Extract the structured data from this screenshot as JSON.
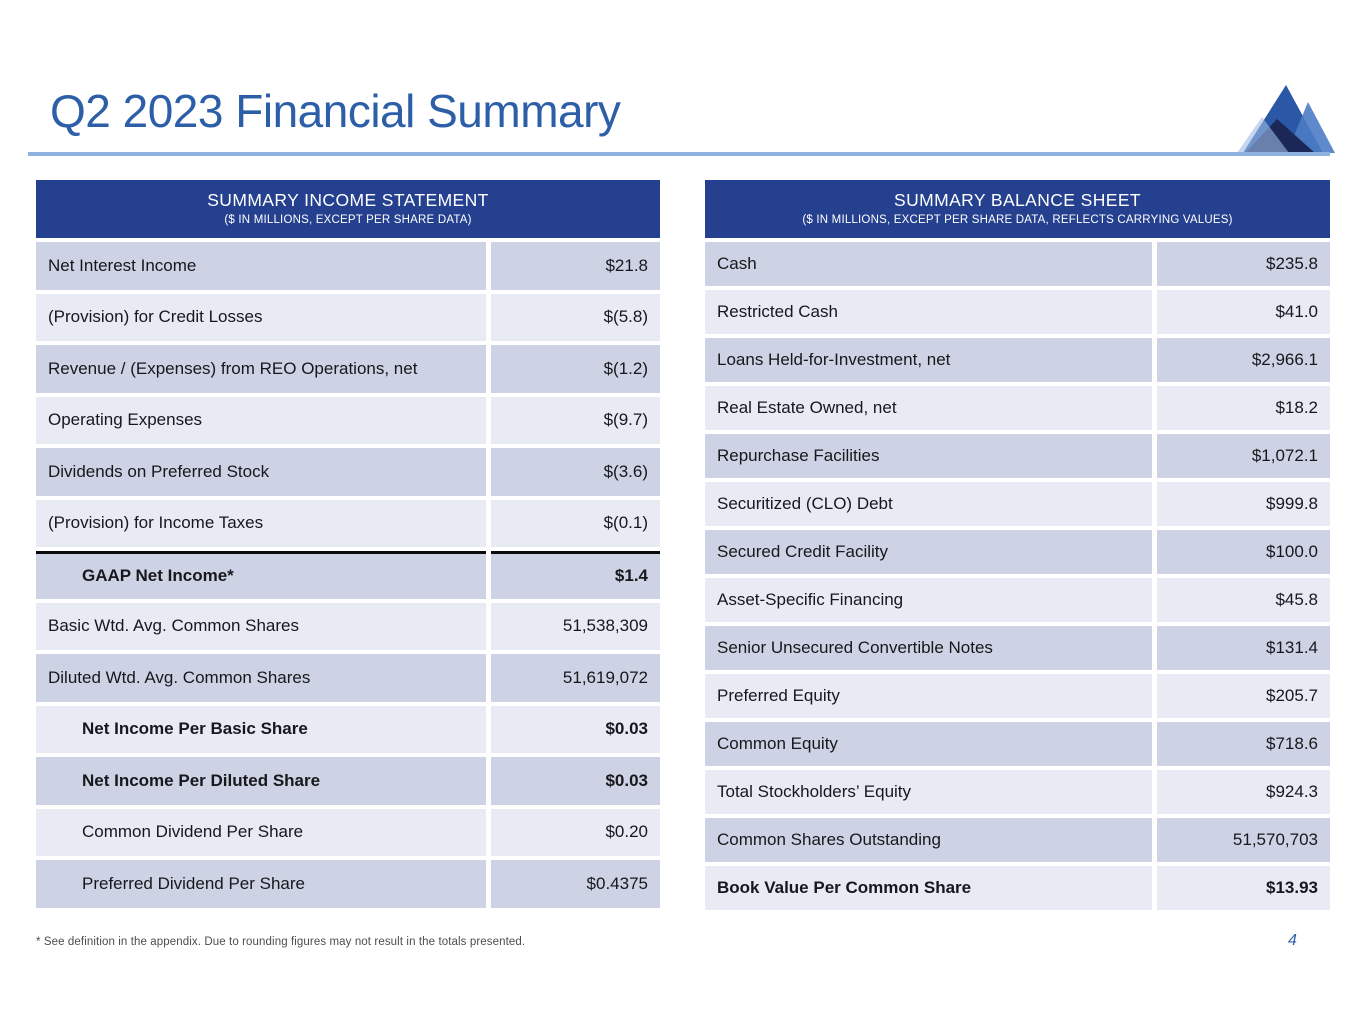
{
  "slide": {
    "title": "Q2 2023 Financial Summary",
    "footnote": "* See definition in the appendix. Due to rounding figures may not result in the totals presented.",
    "page_number": "4"
  },
  "colors": {
    "header_blue": "#24408e",
    "row_dark": "#cdd3e4",
    "row_light": "#e8ebf4",
    "title_blue": "#2d5fa8",
    "rule_blue": "#8fb1e0",
    "logo_navy": "#1b2757",
    "logo_medium_blue": "#2b57a7",
    "logo_light_blue": "#4c7cc5"
  },
  "icons": {
    "logo": "mountain-logo-icon"
  },
  "income_statement": {
    "title": "SUMMARY INCOME STATEMENT",
    "subtitle": "($ IN MILLIONS, EXCEPT PER SHARE DATA)",
    "rows": [
      {
        "label": "Net Interest Income",
        "value": "$21.8"
      },
      {
        "label": "(Provision) for Credit Losses",
        "value": "$(5.8)"
      },
      {
        "label": "Revenue / (Expenses) from REO Operations, net",
        "value": "$(1.2)"
      },
      {
        "label": "Operating Expenses",
        "value": "$(9.7)"
      },
      {
        "label": "Dividends on Preferred Stock",
        "value": "$(3.6)"
      },
      {
        "label": "(Provision) for Income Taxes",
        "value": "$(0.1)"
      },
      {
        "label": "GAAP Net Income*",
        "value": "$1.4",
        "bold": true,
        "indent": true,
        "total_border": true
      },
      {
        "label": "Basic Wtd. Avg. Common Shares",
        "value": "51,538,309"
      },
      {
        "label": "Diluted Wtd. Avg. Common Shares",
        "value": "51,619,072"
      },
      {
        "label": "Net Income Per Basic Share",
        "value": "$0.03",
        "bold": true,
        "indent": true
      },
      {
        "label": "Net Income Per Diluted Share",
        "value": "$0.03",
        "bold": true,
        "indent": true
      },
      {
        "label": "Common Dividend Per Share",
        "value": "$0.20",
        "indent": true
      },
      {
        "label": "Preferred Dividend Per Share",
        "value": "$0.4375",
        "indent": true
      }
    ]
  },
  "balance_sheet": {
    "title": "SUMMARY BALANCE SHEET",
    "subtitle": "($ IN MILLIONS, EXCEPT PER SHARE DATA, REFLECTS CARRYING VALUES)",
    "rows": [
      {
        "label": "Cash",
        "value": "$235.8"
      },
      {
        "label": "Restricted Cash",
        "value": "$41.0"
      },
      {
        "label": "Loans Held-for-Investment, net",
        "value": "$2,966.1"
      },
      {
        "label": "Real Estate Owned, net",
        "value": "$18.2"
      },
      {
        "label": "Repurchase Facilities",
        "value": "$1,072.1"
      },
      {
        "label": "Securitized (CLO) Debt",
        "value": "$999.8"
      },
      {
        "label": "Secured Credit Facility",
        "value": "$100.0"
      },
      {
        "label": "Asset-Specific Financing",
        "value": "$45.8"
      },
      {
        "label": "Senior Unsecured Convertible Notes",
        "value": "$131.4"
      },
      {
        "label": "Preferred Equity",
        "value": "$205.7"
      },
      {
        "label": "Common Equity",
        "value": "$718.6"
      },
      {
        "label": "Total Stockholders’ Equity",
        "value": "$924.3"
      },
      {
        "label": "Common Shares Outstanding",
        "value": "51,570,703"
      },
      {
        "label": "Book Value Per Common Share",
        "value": "$13.93",
        "bold": true
      }
    ]
  }
}
